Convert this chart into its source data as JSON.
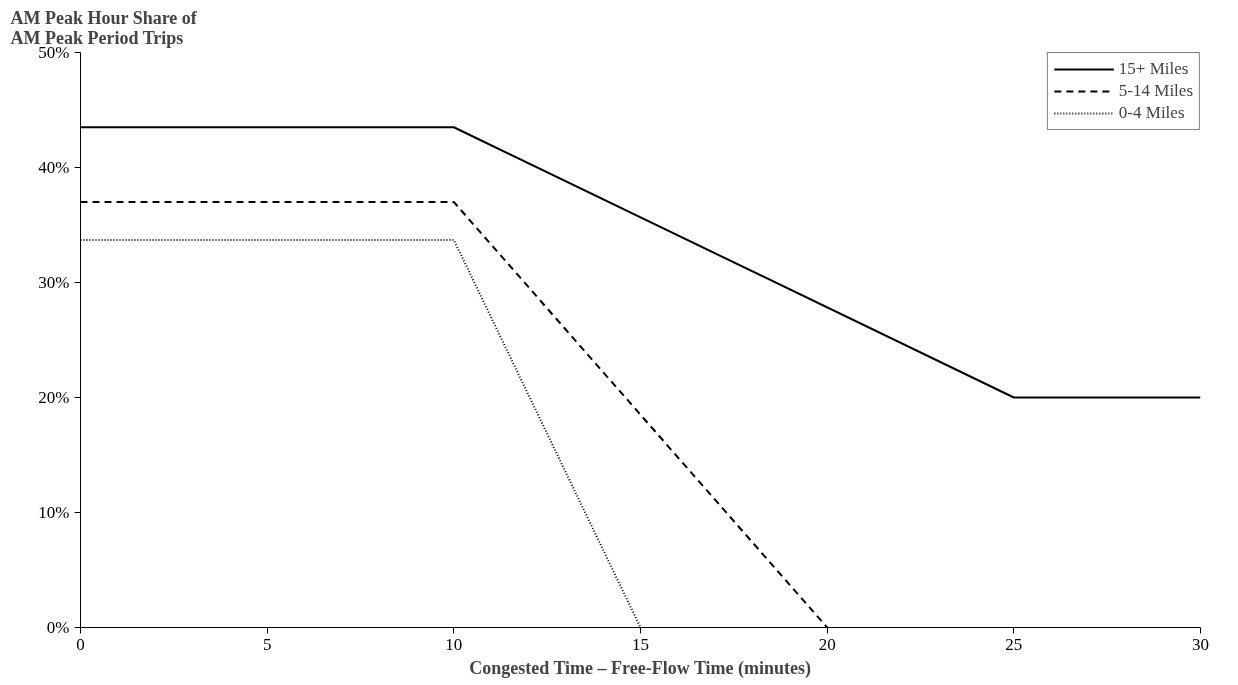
{
  "chart_data": {
    "type": "line",
    "ylabel": "AM Peak Hour Share of AM Peak Period Trips",
    "xlabel": "Congested Time – Free-Flow Time (minutes)",
    "xlim": [
      0,
      30
    ],
    "xticks": [
      0,
      5,
      10,
      15,
      20,
      25,
      30
    ],
    "ylim": [
      0,
      50
    ],
    "yticks": [
      {
        "value": 0,
        "label": "0%"
      },
      {
        "value": 10,
        "label": "10%"
      },
      {
        "value": 20,
        "label": "20%"
      },
      {
        "value": 30,
        "label": "30%"
      },
      {
        "value": 40,
        "label": "40%"
      },
      {
        "value": 50,
        "label": "50%"
      }
    ],
    "grid": false,
    "legend": "top right",
    "series": [
      {
        "name": "15+ Miles",
        "color": "#000000",
        "line_style": "solid",
        "x": [
          0,
          10,
          25,
          30
        ],
        "values": [
          43.5,
          43.5,
          20,
          20
        ]
      },
      {
        "name": "5-14 Miles",
        "color": "#000000",
        "line_style": "dashed",
        "x": [
          0,
          10,
          20
        ],
        "values": [
          37,
          37,
          0
        ]
      },
      {
        "name": "0-4 Miles",
        "color": "#000000",
        "line_style": "dotted",
        "x": [
          0,
          10,
          15
        ],
        "values": [
          33.7,
          33.7,
          0
        ]
      }
    ]
  }
}
